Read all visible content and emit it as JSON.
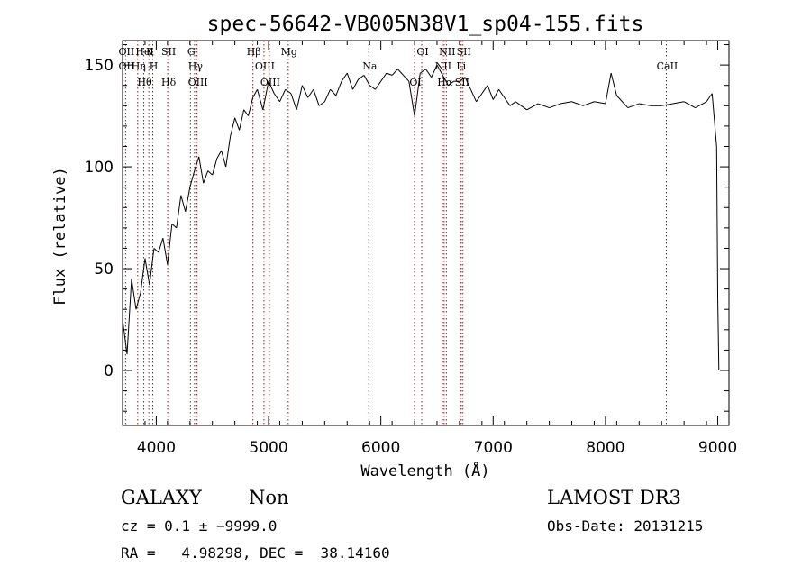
{
  "chart_data": {
    "type": "line",
    "title": "spec-56642-VB005N38V1_sp04-155.fits",
    "xlabel": "Wavelength (Å)",
    "ylabel": "Flux (relative)",
    "xlim": [
      3700,
      9100
    ],
    "ylim": [
      -27,
      162
    ],
    "xticks": [
      4000,
      5000,
      6000,
      7000,
      8000,
      9000
    ],
    "yticks": [
      0,
      50,
      100,
      150
    ],
    "series": [
      {
        "name": "flux",
        "x": [
          3700,
          3740,
          3780,
          3820,
          3860,
          3900,
          3940,
          3980,
          4020,
          4060,
          4100,
          4140,
          4180,
          4220,
          4260,
          4300,
          4340,
          4380,
          4420,
          4460,
          4500,
          4540,
          4580,
          4620,
          4660,
          4700,
          4740,
          4780,
          4820,
          4860,
          4900,
          4950,
          5000,
          5050,
          5100,
          5150,
          5200,
          5250,
          5300,
          5350,
          5400,
          5450,
          5500,
          5550,
          5600,
          5650,
          5700,
          5750,
          5800,
          5850,
          5900,
          5950,
          6000,
          6050,
          6100,
          6150,
          6200,
          6250,
          6300,
          6350,
          6400,
          6450,
          6500,
          6550,
          6600,
          6650,
          6700,
          6750,
          6800,
          6850,
          6900,
          6950,
          7000,
          7050,
          7100,
          7150,
          7200,
          7250,
          7300,
          7400,
          7500,
          7600,
          7700,
          7800,
          7900,
          8000,
          8050,
          8100,
          8200,
          8300,
          8400,
          8500,
          8600,
          8700,
          8800,
          8900,
          8950,
          8990,
          9000,
          9010
        ],
        "y": [
          25,
          8,
          45,
          30,
          38,
          55,
          42,
          60,
          58,
          65,
          52,
          72,
          70,
          86,
          78,
          90,
          98,
          105,
          92,
          98,
          96,
          104,
          108,
          100,
          115,
          124,
          118,
          128,
          125,
          134,
          138,
          128,
          142,
          136,
          132,
          138,
          136,
          128,
          140,
          134,
          138,
          130,
          132,
          138,
          135,
          142,
          146,
          138,
          143,
          145,
          140,
          138,
          142,
          146,
          145,
          148,
          145,
          142,
          125,
          146,
          148,
          144,
          150,
          145,
          140,
          142,
          142,
          144,
          138,
          132,
          136,
          140,
          133,
          138,
          134,
          130,
          132,
          130,
          128,
          131,
          129,
          131,
          132,
          130,
          132,
          131,
          146,
          135,
          129,
          131,
          130,
          130,
          131,
          132,
          129,
          132,
          136,
          110,
          35,
          0
        ]
      }
    ],
    "lines": [
      {
        "wave": 3727,
        "labels": [
          "OII",
          "OII"
        ]
      },
      {
        "wave": 3835,
        "labels": [
          "Hη"
        ]
      },
      {
        "wave": 3889,
        "labels": [
          "Hθ",
          "HeI"
        ]
      },
      {
        "wave": 3934,
        "labels": [
          "K"
        ]
      },
      {
        "wave": 3969,
        "labels": [
          "H"
        ]
      },
      {
        "wave": 4102,
        "labels": [
          "Hδ",
          "SII"
        ]
      },
      {
        "wave": 4304,
        "labels": [
          "G"
        ]
      },
      {
        "wave": 4341,
        "labels": [
          "Hγ"
        ]
      },
      {
        "wave": 4363,
        "labels": [
          "OIII"
        ]
      },
      {
        "wave": 4861,
        "labels": [
          "Hβ"
        ]
      },
      {
        "wave": 4959,
        "labels": [
          "OIII"
        ]
      },
      {
        "wave": 5007,
        "labels": [
          "OIII"
        ]
      },
      {
        "wave": 5175,
        "labels": [
          "Mg"
        ]
      },
      {
        "wave": 5893,
        "labels": [
          "Na"
        ]
      },
      {
        "wave": 6300,
        "labels": [
          "OI"
        ]
      },
      {
        "wave": 6364,
        "labels": [
          "OI"
        ]
      },
      {
        "wave": 6548,
        "labels": [
          "NII"
        ]
      },
      {
        "wave": 6563,
        "labels": [
          "Hα"
        ]
      },
      {
        "wave": 6583,
        "labels": [
          "NII"
        ]
      },
      {
        "wave": 6707,
        "labels": [
          "Li"
        ]
      },
      {
        "wave": 6716,
        "labels": [
          "SII"
        ]
      },
      {
        "wave": 6731,
        "labels": [
          "SII"
        ]
      },
      {
        "wave": 8542,
        "labels": [
          "CaII"
        ]
      }
    ]
  },
  "footer": {
    "class_label": "GALAXY",
    "subclass_label": "Non",
    "survey_label": "LAMOST DR3",
    "cz_text": "cz = 0.1 ± −9999.0",
    "obs_date_text": "Obs-Date: 20131215",
    "radec_text": "RA =   4.98298, DEC =  38.14160"
  },
  "colors": {
    "spectrum": "#000000",
    "line_markers": "#cc0000",
    "axes": "#000000",
    "background": "#ffffff"
  }
}
